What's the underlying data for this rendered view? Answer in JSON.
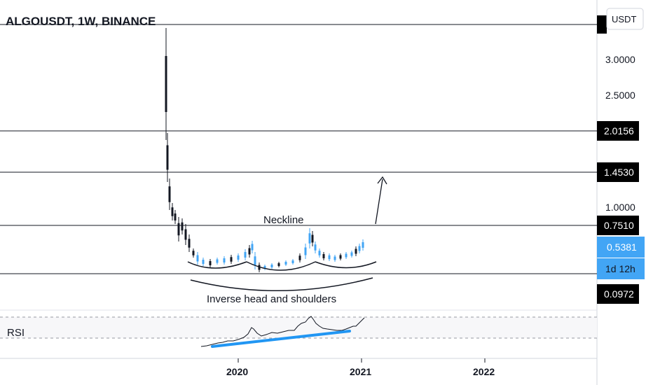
{
  "chart_data": {
    "type": "candlestick",
    "title": "ALGOUSDT, 1W, BINANCE",
    "currency": "USDT",
    "y_axis_ticks": [
      "3.0000",
      "2.5000",
      "1.0000"
    ],
    "x_axis_ticks": [
      "2020",
      "2021",
      "2022"
    ],
    "price_levels": [
      {
        "label": "2.0156",
        "value": 2.0156
      },
      {
        "label": "1.4530",
        "value": 1.453
      },
      {
        "label": "0.7510",
        "value": 0.751
      },
      {
        "label": "0.0972",
        "value": 0.0972
      }
    ],
    "current_price": {
      "label": "0.5381",
      "value": 0.5381,
      "color": "#42a5f5"
    },
    "countdown": "1d 12h",
    "annotations": {
      "neckline": "Neckline",
      "pattern": "Inverse head and shoulders"
    },
    "indicator": {
      "name": "RSI",
      "divergence_line_color": "#2196f3"
    },
    "price_series_approx": [
      {
        "date": "2019-06",
        "high": 3.4,
        "low": 1.9
      },
      {
        "date": "2019-07",
        "high": 1.6,
        "low": 0.8
      },
      {
        "date": "2019-09",
        "high": 0.55,
        "low": 0.25
      },
      {
        "date": "2019-12",
        "high": 0.25,
        "low": 0.15
      },
      {
        "date": "2020-03",
        "high": 0.38,
        "low": 0.11
      },
      {
        "date": "2020-08",
        "high": 0.72,
        "low": 0.35
      },
      {
        "date": "2020-11",
        "high": 0.32,
        "low": 0.22
      },
      {
        "date": "2021-01",
        "high": 0.55,
        "low": 0.3
      }
    ],
    "colors": {
      "up": "#42a5f5",
      "down": "#131722",
      "tag_bg": "#000000",
      "tag_blue": "#42a5f5"
    }
  }
}
